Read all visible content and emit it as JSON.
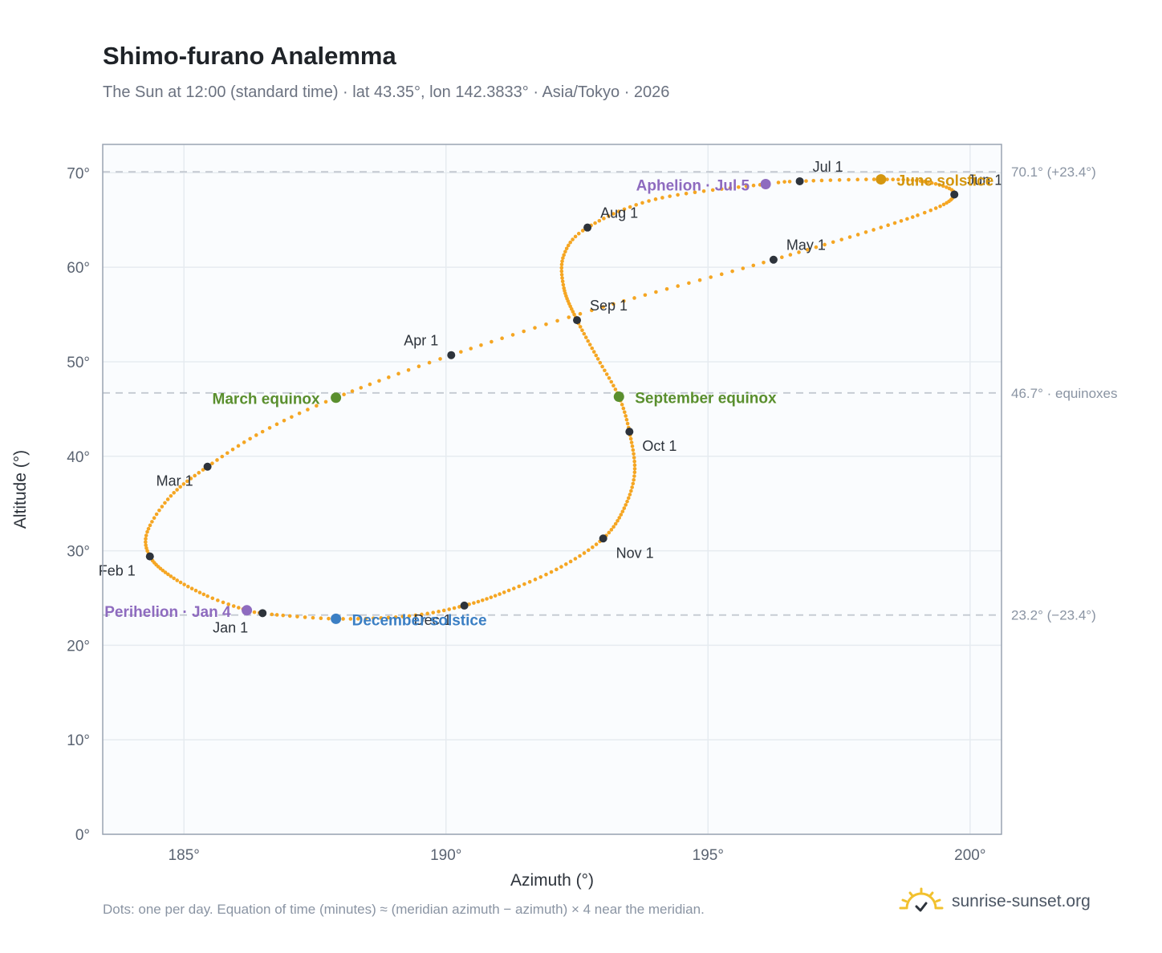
{
  "header": {
    "title": "Shimo-furano Analemma",
    "subtitle": "The Sun at 12:00 (standard time) · lat 43.35°, lon 142.3833° · Asia/Tokyo · 2026"
  },
  "footer": {
    "note": "Dots: one per day. Equation of time (minutes) ≈ (meridian azimuth − azimuth) × 4 near the meridian.",
    "brand": "sunrise-sunset.org"
  },
  "colors": {
    "path": "#f5a623",
    "month_marker": "#2d333b",
    "equinox": "#5a8f2e",
    "solstice_june": "#d4960f",
    "solstice_december": "#3b7fc4",
    "apsis": "#8e6bbf",
    "reference_line": "#c3c9d1",
    "plot_bg": "#fafcfe",
    "grid": "#e6ebf0",
    "frame": "#9aa4b2"
  },
  "chart_data": {
    "type": "scatter",
    "xlabel": "Azimuth (°)",
    "ylabel": "Altitude (°)",
    "xlim": [
      183.45,
      200.6
    ],
    "ylim": [
      0,
      73
    ],
    "xticks": [
      185,
      190,
      195,
      200
    ],
    "yticks": [
      0,
      10,
      20,
      30,
      40,
      50,
      60,
      70
    ],
    "x_tick_suffix": "°",
    "y_tick_suffix": "°",
    "grid": true,
    "reference_lines": [
      {
        "y": 70.1,
        "label": "70.1° (+23.4°)"
      },
      {
        "y": 46.7,
        "label": "46.7° · equinoxes"
      },
      {
        "y": 23.2,
        "label": "23.2° (−23.4°)"
      }
    ],
    "path_anchors": [
      {
        "day": 1,
        "az": 186.5,
        "alt": 23.4
      },
      {
        "day": 4,
        "az": 186.2,
        "alt": 23.7
      },
      {
        "day": 12,
        "az": 185.45,
        "alt": 25.2
      },
      {
        "day": 22,
        "az": 184.75,
        "alt": 27.3
      },
      {
        "day": 32,
        "az": 184.35,
        "alt": 29.4
      },
      {
        "day": 40,
        "az": 184.3,
        "alt": 32.0
      },
      {
        "day": 50,
        "az": 184.75,
        "alt": 35.8
      },
      {
        "day": 60,
        "az": 185.45,
        "alt": 38.9
      },
      {
        "day": 70,
        "az": 186.5,
        "alt": 42.6
      },
      {
        "day": 79,
        "az": 187.9,
        "alt": 46.2
      },
      {
        "day": 91,
        "az": 190.1,
        "alt": 50.7
      },
      {
        "day": 105,
        "az": 193.0,
        "alt": 55.8
      },
      {
        "day": 121,
        "az": 196.25,
        "alt": 60.8
      },
      {
        "day": 140,
        "az": 199.0,
        "alt": 65.5
      },
      {
        "day": 152,
        "az": 199.7,
        "alt": 67.7
      },
      {
        "day": 162,
        "az": 199.2,
        "alt": 69.0
      },
      {
        "day": 172,
        "az": 198.3,
        "alt": 69.3
      },
      {
        "day": 182,
        "az": 196.75,
        "alt": 69.1
      },
      {
        "day": 186,
        "az": 196.1,
        "alt": 68.8
      },
      {
        "day": 200,
        "az": 194.0,
        "alt": 67.2
      },
      {
        "day": 213,
        "az": 192.7,
        "alt": 64.2
      },
      {
        "day": 222,
        "az": 192.25,
        "alt": 61.3
      },
      {
        "day": 232,
        "az": 192.25,
        "alt": 57.8
      },
      {
        "day": 244,
        "az": 192.5,
        "alt": 54.4
      },
      {
        "day": 255,
        "az": 192.9,
        "alt": 50.3
      },
      {
        "day": 265,
        "az": 193.3,
        "alt": 46.3
      },
      {
        "day": 274,
        "az": 193.5,
        "alt": 42.6
      },
      {
        "day": 285,
        "az": 193.6,
        "alt": 38.3
      },
      {
        "day": 295,
        "az": 193.4,
        "alt": 34.5
      },
      {
        "day": 305,
        "az": 193.0,
        "alt": 31.3
      },
      {
        "day": 315,
        "az": 192.2,
        "alt": 28.3
      },
      {
        "day": 325,
        "az": 191.2,
        "alt": 25.8
      },
      {
        "day": 335,
        "az": 190.35,
        "alt": 24.2
      },
      {
        "day": 345,
        "az": 189.3,
        "alt": 23.1
      },
      {
        "day": 355,
        "az": 187.9,
        "alt": 22.8
      },
      {
        "day": 365,
        "az": 186.6,
        "alt": 23.3
      }
    ],
    "month_markers": [
      {
        "label": "Jan 1",
        "az": 186.5,
        "alt": 23.4,
        "anchor": "end",
        "dx": -18,
        "dy": 24
      },
      {
        "label": "Feb 1",
        "az": 184.35,
        "alt": 29.4,
        "anchor": "end",
        "dx": -18,
        "dy": 24
      },
      {
        "label": "Mar 1",
        "az": 185.45,
        "alt": 38.9,
        "anchor": "end",
        "dx": -18,
        "dy": 24
      },
      {
        "label": "Apr 1",
        "az": 190.1,
        "alt": 50.7,
        "anchor": "end",
        "dx": -16,
        "dy": -12
      },
      {
        "label": "May 1",
        "az": 196.25,
        "alt": 60.8,
        "anchor": "start",
        "dx": 16,
        "dy": -12
      },
      {
        "label": "Jun 1",
        "az": 199.7,
        "alt": 67.7,
        "anchor": "start",
        "dx": 16,
        "dy": -12
      },
      {
        "label": "Jul 1",
        "az": 196.75,
        "alt": 69.1,
        "anchor": "start",
        "dx": 16,
        "dy": -12
      },
      {
        "label": "Aug 1",
        "az": 192.7,
        "alt": 64.2,
        "anchor": "start",
        "dx": 16,
        "dy": -12
      },
      {
        "label": "Sep 1",
        "az": 192.5,
        "alt": 54.4,
        "anchor": "start",
        "dx": 16,
        "dy": -12
      },
      {
        "label": "Oct 1",
        "az": 193.5,
        "alt": 42.6,
        "anchor": "start",
        "dx": 16,
        "dy": 24
      },
      {
        "label": "Nov 1",
        "az": 193.0,
        "alt": 31.3,
        "anchor": "start",
        "dx": 16,
        "dy": 24
      },
      {
        "label": "Dec 1",
        "az": 190.35,
        "alt": 24.2,
        "anchor": "end",
        "dx": -16,
        "dy": 24
      }
    ],
    "events": [
      {
        "label": "March equinox",
        "az": 187.9,
        "alt": 46.2,
        "kind": "equinox",
        "anchor": "end",
        "dx": -20,
        "dy": 8
      },
      {
        "label": "September equinox",
        "az": 193.3,
        "alt": 46.3,
        "kind": "equinox",
        "anchor": "start",
        "dx": 20,
        "dy": 8
      },
      {
        "label": "June solstice",
        "az": 198.3,
        "alt": 69.3,
        "kind": "solstice_june",
        "anchor": "start",
        "dx": 20,
        "dy": 8
      },
      {
        "label": "December solstice",
        "az": 187.9,
        "alt": 22.8,
        "kind": "solstice_december",
        "anchor": "start",
        "dx": 20,
        "dy": 8
      },
      {
        "label": "Aphelion · Jul 5",
        "az": 196.1,
        "alt": 68.8,
        "kind": "apsis",
        "anchor": "end",
        "dx": -20,
        "dy": 8
      },
      {
        "label": "Perihelion · Jan 4",
        "az": 186.2,
        "alt": 23.7,
        "kind": "apsis",
        "anchor": "end",
        "dx": -20,
        "dy": 8
      }
    ]
  }
}
